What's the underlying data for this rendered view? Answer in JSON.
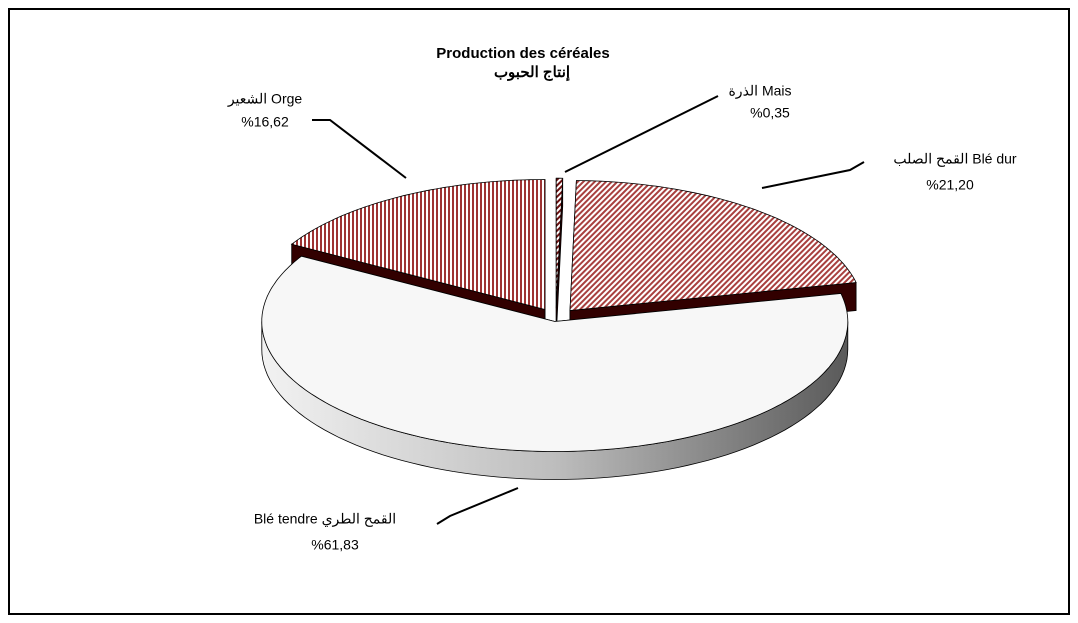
{
  "chart_data": {
    "type": "pie3d",
    "title": "Production des céréales",
    "subtitle": "إنتاج الحبوب",
    "categories": [
      "الذرة Mais",
      "القمح الصلب Blé dur",
      "Blé tendre  القمح الطري",
      "الشعير Orge"
    ],
    "values": [
      0.35,
      21.2,
      61.83,
      16.62
    ],
    "value_labels": [
      "%0,35",
      "%21,20",
      "%61,83",
      "%16,62"
    ],
    "colors": [
      "#6b1010",
      "#a8403f",
      "#ffffff",
      "#9e3333"
    ]
  }
}
